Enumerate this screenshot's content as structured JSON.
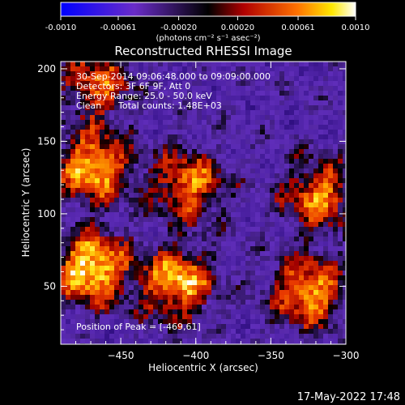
{
  "chart_data": {
    "type": "heatmap",
    "title": "Reconstructed RHESSI Image",
    "xlabel": "Heliocentric X (arcsec)",
    "ylabel": "Heliocentric Y (arcsec)",
    "xlim": [
      -490,
      -300
    ],
    "ylim": [
      10,
      205
    ],
    "xticks": [
      -450,
      -400,
      -350,
      -300
    ],
    "yticks": [
      50,
      100,
      150,
      200
    ],
    "colorbar": {
      "range": [
        -0.001,
        0.001
      ],
      "ticks": [
        "-0.0010",
        "-0.00061",
        "-0.00020",
        "0.00020",
        "0.00061",
        "0.0010"
      ],
      "tick_values": [
        -0.001,
        -0.00061,
        -0.0002,
        0.0002,
        0.00061,
        0.001
      ],
      "unit_label": "(photons cm⁻² s⁻¹ asec⁻²)"
    },
    "annotations": {
      "time": "30-Sep-2014 09:06:48.000 to 09:09:00.000",
      "detectors": "Detectors: 3F 6F 9F, Att 0",
      "energy": "Energy Range: 25.0 - 50.0 keV",
      "algorithm": "Clean",
      "counts": "Total counts: 1.48E+03",
      "peak": "Position of Peak = [-469,61]"
    },
    "sources": [
      {
        "x": -470,
        "y": 62,
        "peak": 0.001
      },
      {
        "x": -468,
        "y": 132,
        "peak": 0.0008
      },
      {
        "x": -412,
        "y": 52,
        "peak": 0.0008
      },
      {
        "x": -325,
        "y": 46,
        "peak": 0.00075
      },
      {
        "x": -405,
        "y": 120,
        "peak": 0.0006
      },
      {
        "x": -318,
        "y": 112,
        "peak": 0.0006
      },
      {
        "x": -465,
        "y": 190,
        "peak": 0.00045
      }
    ]
  },
  "footer": {
    "timestamp": "17-May-2022 17:48"
  },
  "colors": {
    "background": "#000000",
    "text": "#ffffff"
  }
}
